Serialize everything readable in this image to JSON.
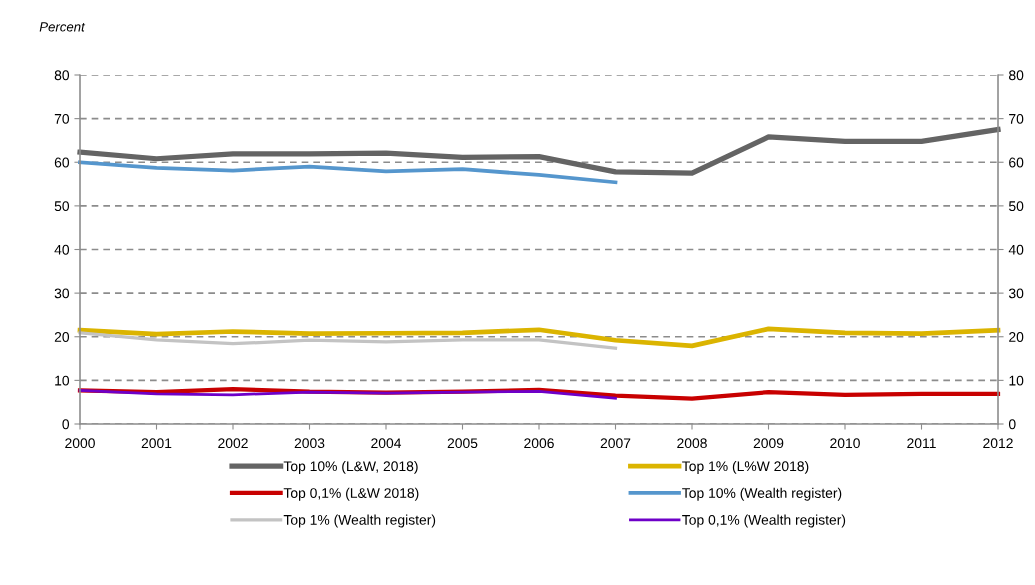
{
  "chart_data": {
    "type": "line",
    "ylabel": "Percent",
    "x": [
      2000,
      2001,
      2002,
      2003,
      2004,
      2005,
      2006,
      2007,
      2008,
      2009,
      2010,
      2011,
      2012
    ],
    "xlim": [
      2000,
      2012
    ],
    "xticks": [
      2000,
      2001,
      2002,
      2003,
      2004,
      2005,
      2006,
      2007,
      2008,
      2009,
      2010,
      2011,
      2012
    ],
    "ylim": [
      0,
      80
    ],
    "yticks": [
      0,
      10,
      20,
      30,
      40,
      50,
      60,
      70,
      80
    ],
    "y2lim": [
      0,
      80
    ],
    "y2ticks": [
      0,
      10,
      20,
      30,
      40,
      50,
      60,
      70,
      80
    ],
    "grid": "y",
    "legend": "bottom",
    "line_style": "solid",
    "marker": "none",
    "series": [
      {
        "name": "Top 10% (L&W, 2018)",
        "color": "#646464",
        "values": [
          62.3,
          60.8,
          61.9,
          61.9,
          62.1,
          61.1,
          61.3,
          57.8,
          57.5,
          65.8,
          64.8,
          64.8,
          67.5
        ]
      },
      {
        "name": "Top 1% (L%W 2018)",
        "color": "#dbb400",
        "values": [
          21.5,
          20.6,
          21.2,
          20.7,
          20.8,
          20.9,
          21.6,
          19.2,
          17.9,
          21.8,
          20.9,
          20.7,
          21.5
        ]
      },
      {
        "name": "Top 0,1% (L&W 2018)",
        "color": "#c80000",
        "values": [
          7.7,
          7.3,
          8.0,
          7.4,
          7.2,
          7.4,
          7.8,
          6.5,
          5.8,
          7.3,
          6.7,
          6.9,
          6.9
        ]
      },
      {
        "name": "Top 10% (Wealth register)",
        "color": "#5596cd",
        "values": [
          60.0,
          58.7,
          58.1,
          59.0,
          57.9,
          58.4,
          57.1,
          55.4,
          null,
          null,
          null,
          null,
          null
        ]
      },
      {
        "name": "Top 1% (Wealth register)",
        "color": "#c3c3c3",
        "values": [
          20.9,
          19.3,
          18.4,
          19.2,
          18.8,
          19.3,
          19.3,
          17.4,
          null,
          null,
          null,
          null,
          null
        ]
      },
      {
        "name": "Top 0,1% (Wealth register)",
        "color": "#6e00c8",
        "values": [
          7.7,
          6.9,
          6.7,
          7.3,
          7.1,
          7.3,
          7.5,
          5.9,
          null,
          null,
          null,
          null,
          null
        ]
      }
    ]
  }
}
